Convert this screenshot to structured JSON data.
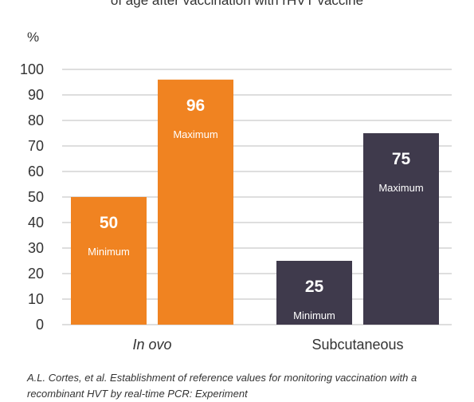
{
  "title": "of age after vaccination with rHVT vaccine",
  "caption": "A.L. Cortes, et al. Establishment of reference values for monitoring vaccination with a recombinant HVT by real-time PCR: Experiment",
  "colors": {
    "in_ovo": "#f08321",
    "subcutaneous": "#3f3a4c",
    "grid": "#bdbdbd"
  },
  "chart_data": {
    "type": "bar",
    "ylabel": "%",
    "ylim": [
      0,
      100
    ],
    "yticks": [
      0,
      10,
      20,
      30,
      40,
      50,
      60,
      70,
      80,
      90,
      100
    ],
    "grid": true,
    "categories": [
      "In ovo",
      "Subcutaneous"
    ],
    "groups": [
      {
        "category": "In ovo",
        "color": "#f08321",
        "bars": [
          {
            "label": "Minimum",
            "value": 50
          },
          {
            "label": "Maximum",
            "value": 96
          }
        ]
      },
      {
        "category": "Subcutaneous",
        "color": "#3f3a4c",
        "bars": [
          {
            "label": "Minimum",
            "value": 25
          },
          {
            "label": "Maximum",
            "value": 75
          }
        ]
      }
    ]
  }
}
